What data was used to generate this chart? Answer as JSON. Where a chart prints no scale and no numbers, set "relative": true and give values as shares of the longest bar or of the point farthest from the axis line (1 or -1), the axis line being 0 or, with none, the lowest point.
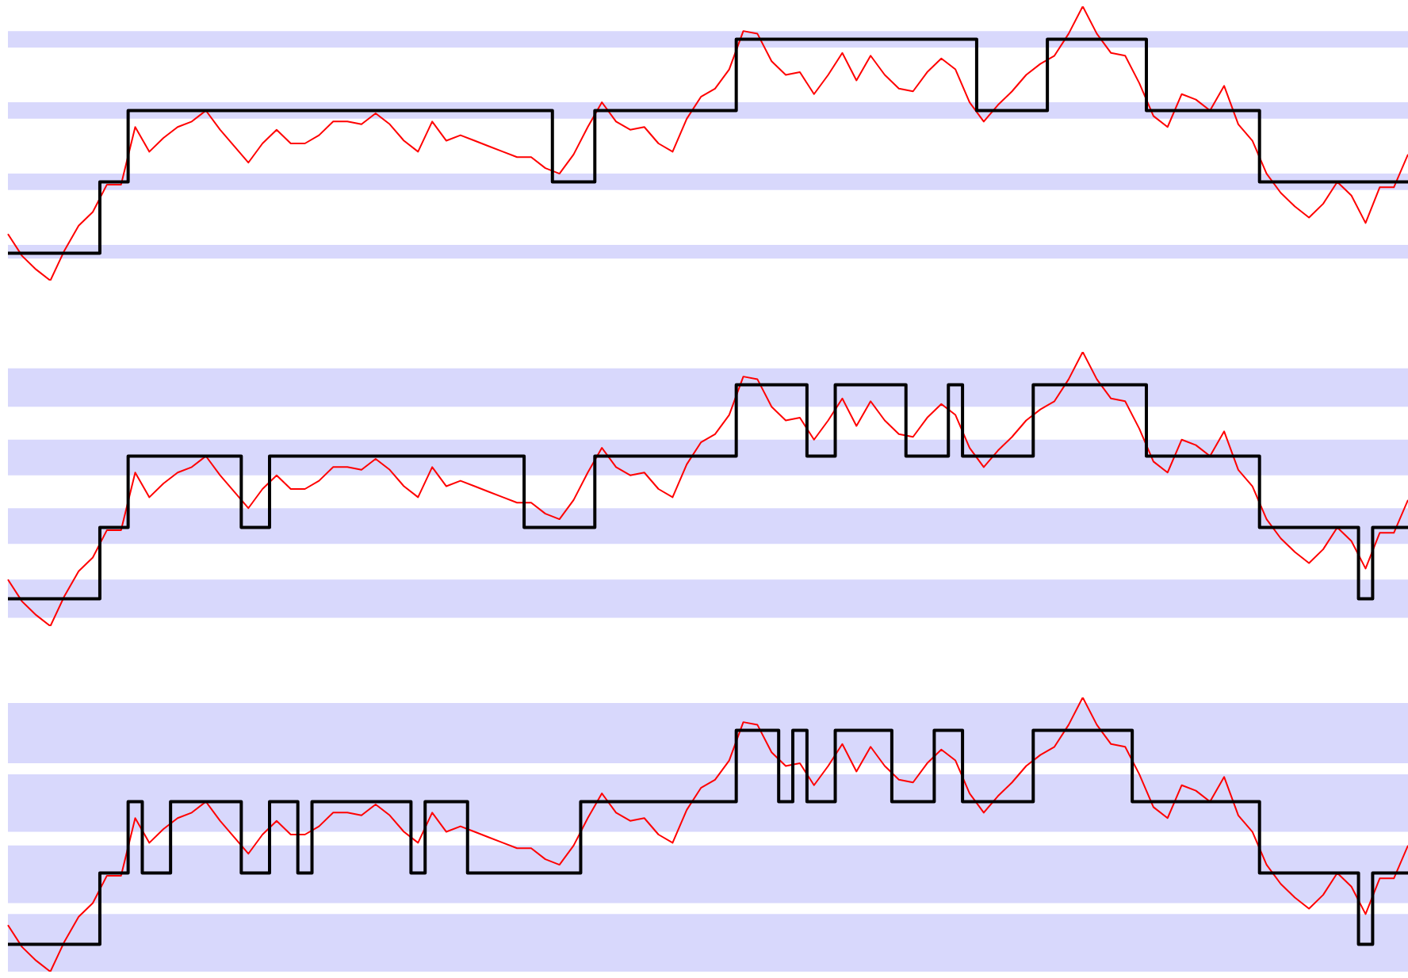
{
  "chart_data": [
    {
      "type": "line",
      "relative": true,
      "legend": false,
      "marker": "none",
      "categories": [
        null,
        null,
        null,
        null,
        null,
        null,
        null,
        null,
        null,
        null,
        null,
        null,
        null,
        null,
        null,
        null,
        null,
        null,
        null,
        null,
        null,
        null,
        null,
        null,
        null,
        null,
        null,
        null,
        null,
        null,
        null,
        null,
        null,
        null,
        null,
        null,
        null,
        null,
        null,
        null,
        null,
        null,
        null,
        null,
        null,
        null,
        null,
        null,
        null,
        null,
        null,
        null,
        null,
        null,
        null,
        null,
        null,
        null,
        null,
        null,
        null,
        null,
        null,
        null,
        null,
        null,
        null,
        null,
        null,
        null,
        null,
        null,
        null,
        null,
        null,
        null,
        null,
        null,
        null,
        null,
        null,
        null,
        null,
        null,
        null,
        null,
        null,
        null,
        null,
        null,
        null,
        null,
        null,
        null,
        null,
        null,
        null,
        null,
        null,
        null
      ],
      "bands": [
        {
          "axis": "y",
          "from": 0.08,
          "to": 0.13,
          "color": "#d8d8fc"
        },
        {
          "axis": "y",
          "from": 0.33,
          "to": 0.39,
          "color": "#d8d8fc"
        },
        {
          "axis": "y",
          "from": 0.59,
          "to": 0.65,
          "color": "#d8d8fc"
        },
        {
          "axis": "y",
          "from": 0.85,
          "to": 0.91,
          "color": "#d8d8fc"
        }
      ],
      "series": [
        {
          "type": "line",
          "color": "#ff0000",
          "values": [
            0.17,
            0.09,
            0.04,
            0,
            0.11,
            0.2,
            0.25,
            0.35,
            0.35,
            0.56,
            0.47,
            0.52,
            0.56,
            0.58,
            0.62,
            0.55,
            0.49,
            0.43,
            0.5,
            0.55,
            0.5,
            0.5,
            0.53,
            0.58,
            0.58,
            0.57,
            0.61,
            0.57,
            0.51,
            0.47,
            0.58,
            0.51,
            0.53,
            0.51,
            0.49,
            0.47,
            0.45,
            0.45,
            0.41,
            0.39,
            0.46,
            0.56,
            0.65,
            0.58,
            0.55,
            0.56,
            0.5,
            0.47,
            0.59,
            0.67,
            0.7,
            0.77,
            0.91,
            0.9,
            0.8,
            0.75,
            0.76,
            0.68,
            0.75,
            0.83,
            0.73,
            0.82,
            0.75,
            0.7,
            0.69,
            0.76,
            0.81,
            0.77,
            0.65,
            0.58,
            0.64,
            0.69,
            0.75,
            0.79,
            0.82,
            0.9,
            1,
            0.9,
            0.83,
            0.82,
            0.72,
            0.6,
            0.56,
            0.68,
            0.66,
            0.62,
            0.71,
            0.57,
            0.51,
            0.39,
            0.32,
            0.27,
            0.23,
            0.28,
            0.36,
            0.31,
            0.21,
            0.34,
            0.34,
            0.46
          ]
        },
        {
          "type": "step",
          "color": "#000000",
          "values": [
            0.1,
            0.1,
            0.1,
            0.1,
            0.1,
            0.1,
            0.1,
            0.36,
            0.36,
            0.62,
            0.62,
            0.62,
            0.62,
            0.62,
            0.62,
            0.62,
            0.62,
            0.62,
            0.62,
            0.62,
            0.62,
            0.62,
            0.62,
            0.62,
            0.62,
            0.62,
            0.62,
            0.62,
            0.62,
            0.62,
            0.62,
            0.62,
            0.62,
            0.62,
            0.62,
            0.62,
            0.62,
            0.62,
            0.62,
            0.36,
            0.36,
            0.36,
            0.62,
            0.62,
            0.62,
            0.62,
            0.62,
            0.62,
            0.62,
            0.62,
            0.62,
            0.62,
            0.88,
            0.88,
            0.88,
            0.88,
            0.88,
            0.88,
            0.88,
            0.88,
            0.88,
            0.88,
            0.88,
            0.88,
            0.88,
            0.88,
            0.88,
            0.88,
            0.88,
            0.62,
            0.62,
            0.62,
            0.62,
            0.62,
            0.88,
            0.88,
            0.88,
            0.88,
            0.88,
            0.88,
            0.88,
            0.62,
            0.62,
            0.62,
            0.62,
            0.62,
            0.62,
            0.62,
            0.62,
            0.36,
            0.36,
            0.36,
            0.36,
            0.36,
            0.36,
            0.36,
            0.36,
            0.36,
            0.36,
            0.36
          ]
        }
      ]
    },
    {
      "type": "line",
      "relative": true,
      "legend": false,
      "marker": "none",
      "categories": [
        null,
        null,
        null,
        null,
        null,
        null,
        null,
        null,
        null,
        null,
        null,
        null,
        null,
        null,
        null,
        null,
        null,
        null,
        null,
        null,
        null,
        null,
        null,
        null,
        null,
        null,
        null,
        null,
        null,
        null,
        null,
        null,
        null,
        null,
        null,
        null,
        null,
        null,
        null,
        null,
        null,
        null,
        null,
        null,
        null,
        null,
        null,
        null,
        null,
        null,
        null,
        null,
        null,
        null,
        null,
        null,
        null,
        null,
        null,
        null,
        null,
        null,
        null,
        null,
        null,
        null,
        null,
        null,
        null,
        null,
        null,
        null,
        null,
        null,
        null,
        null,
        null,
        null,
        null,
        null,
        null,
        null,
        null,
        null,
        null,
        null,
        null,
        null,
        null,
        null,
        null,
        null,
        null,
        null,
        null,
        null,
        null,
        null,
        null,
        null
      ],
      "bands": [
        {
          "axis": "y",
          "from": 0.03,
          "to": 0.17,
          "color": "#d8d8fc"
        },
        {
          "axis": "y",
          "from": 0.3,
          "to": 0.43,
          "color": "#d8d8fc"
        },
        {
          "axis": "y",
          "from": 0.55,
          "to": 0.68,
          "color": "#d8d8fc"
        },
        {
          "axis": "y",
          "from": 0.8,
          "to": 0.94,
          "color": "#d8d8fc"
        }
      ],
      "series": [
        {
          "type": "line",
          "color": "#ff0000",
          "values": [
            0.17,
            0.09,
            0.04,
            0,
            0.11,
            0.2,
            0.25,
            0.35,
            0.35,
            0.56,
            0.47,
            0.52,
            0.56,
            0.58,
            0.62,
            0.55,
            0.49,
            0.43,
            0.5,
            0.55,
            0.5,
            0.5,
            0.53,
            0.58,
            0.58,
            0.57,
            0.61,
            0.57,
            0.51,
            0.47,
            0.58,
            0.51,
            0.53,
            0.51,
            0.49,
            0.47,
            0.45,
            0.45,
            0.41,
            0.39,
            0.46,
            0.56,
            0.65,
            0.58,
            0.55,
            0.56,
            0.5,
            0.47,
            0.59,
            0.67,
            0.7,
            0.77,
            0.91,
            0.9,
            0.8,
            0.75,
            0.76,
            0.68,
            0.75,
            0.83,
            0.73,
            0.82,
            0.75,
            0.7,
            0.69,
            0.76,
            0.81,
            0.77,
            0.65,
            0.58,
            0.64,
            0.69,
            0.75,
            0.79,
            0.82,
            0.9,
            1,
            0.9,
            0.83,
            0.82,
            0.72,
            0.6,
            0.56,
            0.68,
            0.66,
            0.62,
            0.71,
            0.57,
            0.51,
            0.39,
            0.32,
            0.27,
            0.23,
            0.28,
            0.36,
            0.31,
            0.21,
            0.34,
            0.34,
            0.46
          ]
        },
        {
          "type": "step",
          "color": "#000000",
          "values": [
            0.1,
            0.1,
            0.1,
            0.1,
            0.1,
            0.1,
            0.1,
            0.36,
            0.36,
            0.62,
            0.62,
            0.62,
            0.62,
            0.62,
            0.62,
            0.62,
            0.62,
            0.36,
            0.36,
            0.62,
            0.62,
            0.62,
            0.62,
            0.62,
            0.62,
            0.62,
            0.62,
            0.62,
            0.62,
            0.62,
            0.62,
            0.62,
            0.62,
            0.62,
            0.62,
            0.62,
            0.62,
            0.36,
            0.36,
            0.36,
            0.36,
            0.36,
            0.62,
            0.62,
            0.62,
            0.62,
            0.62,
            0.62,
            0.62,
            0.62,
            0.62,
            0.62,
            0.88,
            0.88,
            0.88,
            0.88,
            0.88,
            0.62,
            0.62,
            0.88,
            0.88,
            0.88,
            0.88,
            0.88,
            0.62,
            0.62,
            0.62,
            0.88,
            0.62,
            0.62,
            0.62,
            0.62,
            0.62,
            0.88,
            0.88,
            0.88,
            0.88,
            0.88,
            0.88,
            0.88,
            0.88,
            0.62,
            0.62,
            0.62,
            0.62,
            0.62,
            0.62,
            0.62,
            0.62,
            0.36,
            0.36,
            0.36,
            0.36,
            0.36,
            0.36,
            0.36,
            0.1,
            0.36,
            0.36,
            0.36
          ]
        }
      ]
    },
    {
      "type": "line",
      "relative": true,
      "legend": false,
      "marker": "none",
      "categories": [
        null,
        null,
        null,
        null,
        null,
        null,
        null,
        null,
        null,
        null,
        null,
        null,
        null,
        null,
        null,
        null,
        null,
        null,
        null,
        null,
        null,
        null,
        null,
        null,
        null,
        null,
        null,
        null,
        null,
        null,
        null,
        null,
        null,
        null,
        null,
        null,
        null,
        null,
        null,
        null,
        null,
        null,
        null,
        null,
        null,
        null,
        null,
        null,
        null,
        null,
        null,
        null,
        null,
        null,
        null,
        null,
        null,
        null,
        null,
        null,
        null,
        null,
        null,
        null,
        null,
        null,
        null,
        null,
        null,
        null,
        null,
        null,
        null,
        null,
        null,
        null,
        null,
        null,
        null,
        null,
        null,
        null,
        null,
        null,
        null,
        null,
        null,
        null,
        null,
        null,
        null,
        null,
        null,
        null,
        null,
        null,
        null,
        null,
        null,
        null
      ],
      "bands": [
        {
          "axis": "y",
          "from": 0,
          "to": 0.21,
          "color": "#d8d8fc"
        },
        {
          "axis": "y",
          "from": 0.25,
          "to": 0.46,
          "color": "#d8d8fc"
        },
        {
          "axis": "y",
          "from": 0.51,
          "to": 0.72,
          "color": "#d8d8fc"
        },
        {
          "axis": "y",
          "from": 0.76,
          "to": 0.98,
          "color": "#d8d8fc"
        }
      ],
      "series": [
        {
          "type": "line",
          "color": "#ff0000",
          "values": [
            0.17,
            0.09,
            0.04,
            0,
            0.11,
            0.2,
            0.25,
            0.35,
            0.35,
            0.56,
            0.47,
            0.52,
            0.56,
            0.58,
            0.62,
            0.55,
            0.49,
            0.43,
            0.5,
            0.55,
            0.5,
            0.5,
            0.53,
            0.58,
            0.58,
            0.57,
            0.61,
            0.57,
            0.51,
            0.47,
            0.58,
            0.51,
            0.53,
            0.51,
            0.49,
            0.47,
            0.45,
            0.45,
            0.41,
            0.39,
            0.46,
            0.56,
            0.65,
            0.58,
            0.55,
            0.56,
            0.5,
            0.47,
            0.59,
            0.67,
            0.7,
            0.77,
            0.91,
            0.9,
            0.8,
            0.75,
            0.76,
            0.68,
            0.75,
            0.83,
            0.73,
            0.82,
            0.75,
            0.7,
            0.69,
            0.76,
            0.81,
            0.77,
            0.65,
            0.58,
            0.64,
            0.69,
            0.75,
            0.79,
            0.82,
            0.9,
            1,
            0.9,
            0.83,
            0.82,
            0.72,
            0.6,
            0.56,
            0.68,
            0.66,
            0.62,
            0.71,
            0.57,
            0.51,
            0.39,
            0.32,
            0.27,
            0.23,
            0.28,
            0.36,
            0.31,
            0.21,
            0.34,
            0.34,
            0.46
          ]
        },
        {
          "type": "step",
          "color": "#000000",
          "values": [
            0.1,
            0.1,
            0.1,
            0.1,
            0.1,
            0.1,
            0.1,
            0.36,
            0.36,
            0.62,
            0.36,
            0.36,
            0.62,
            0.62,
            0.62,
            0.62,
            0.62,
            0.36,
            0.36,
            0.62,
            0.62,
            0.36,
            0.62,
            0.62,
            0.62,
            0.62,
            0.62,
            0.62,
            0.62,
            0.36,
            0.62,
            0.62,
            0.62,
            0.36,
            0.36,
            0.36,
            0.36,
            0.36,
            0.36,
            0.36,
            0.36,
            0.62,
            0.62,
            0.62,
            0.62,
            0.62,
            0.62,
            0.62,
            0.62,
            0.62,
            0.62,
            0.62,
            0.88,
            0.88,
            0.88,
            0.62,
            0.88,
            0.62,
            0.62,
            0.88,
            0.88,
            0.88,
            0.88,
            0.62,
            0.62,
            0.62,
            0.88,
            0.88,
            0.62,
            0.62,
            0.62,
            0.62,
            0.62,
            0.88,
            0.88,
            0.88,
            0.88,
            0.88,
            0.88,
            0.88,
            0.62,
            0.62,
            0.62,
            0.62,
            0.62,
            0.62,
            0.62,
            0.62,
            0.62,
            0.36,
            0.36,
            0.36,
            0.36,
            0.36,
            0.36,
            0.36,
            0.1,
            0.36,
            0.36,
            0.36
          ]
        }
      ]
    }
  ]
}
